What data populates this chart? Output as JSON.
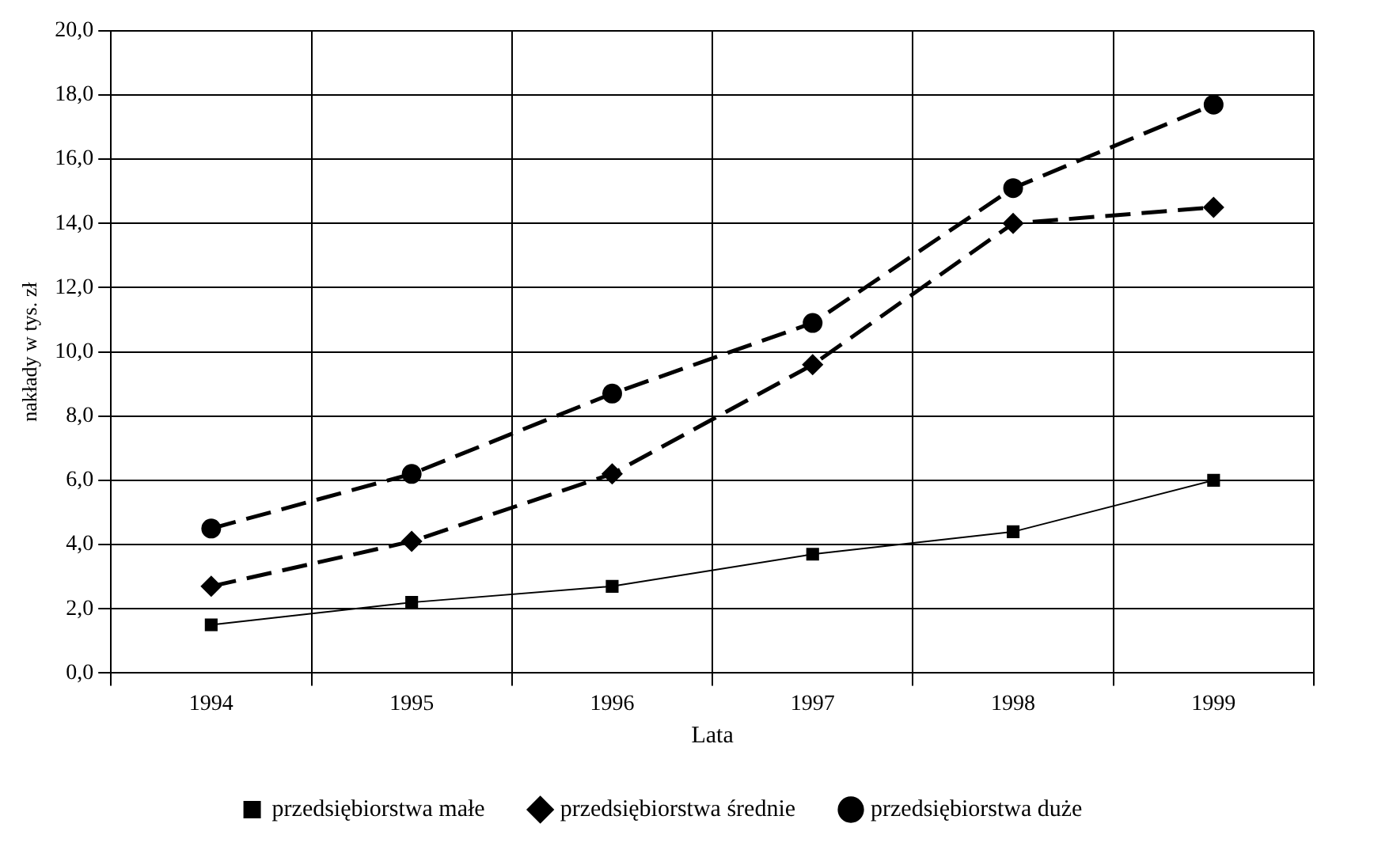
{
  "chart_data": {
    "type": "line",
    "xlabel": "Lata",
    "ylabel": "nakłady w tys. zł",
    "categories": [
      "1994",
      "1995",
      "1996",
      "1997",
      "1998",
      "1999"
    ],
    "series": [
      {
        "name": "przedsiębiorstwa małe",
        "color": "#000000",
        "marker": "square",
        "line_style": "solid",
        "values": [
          1.5,
          2.2,
          2.7,
          3.7,
          4.4,
          6.0
        ]
      },
      {
        "name": "przedsiębiorstwa średnie",
        "color": "#000000",
        "marker": "diamond",
        "line_style": "dashed",
        "values": [
          2.7,
          4.1,
          6.2,
          9.6,
          14.0,
          14.5
        ]
      },
      {
        "name": "przedsiębiorstwa duże",
        "color": "#000000",
        "marker": "circle",
        "line_style": "dashed",
        "values": [
          4.5,
          6.2,
          8.7,
          10.9,
          15.1,
          17.7
        ]
      }
    ],
    "ylim": [
      0,
      20
    ],
    "yticks": [
      {
        "value": 0,
        "label": "0,0"
      },
      {
        "value": 2,
        "label": "2,0"
      },
      {
        "value": 4,
        "label": "4,0"
      },
      {
        "value": 6,
        "label": "6,0"
      },
      {
        "value": 8,
        "label": "8,0"
      },
      {
        "value": 10,
        "label": "10,0"
      },
      {
        "value": 12,
        "label": "12,0"
      },
      {
        "value": 14,
        "label": "14,0"
      },
      {
        "value": 16,
        "label": "16,0"
      },
      {
        "value": 18,
        "label": "18,0"
      },
      {
        "value": 20,
        "label": "20,0"
      }
    ],
    "grid": true,
    "legend": "bottom"
  }
}
